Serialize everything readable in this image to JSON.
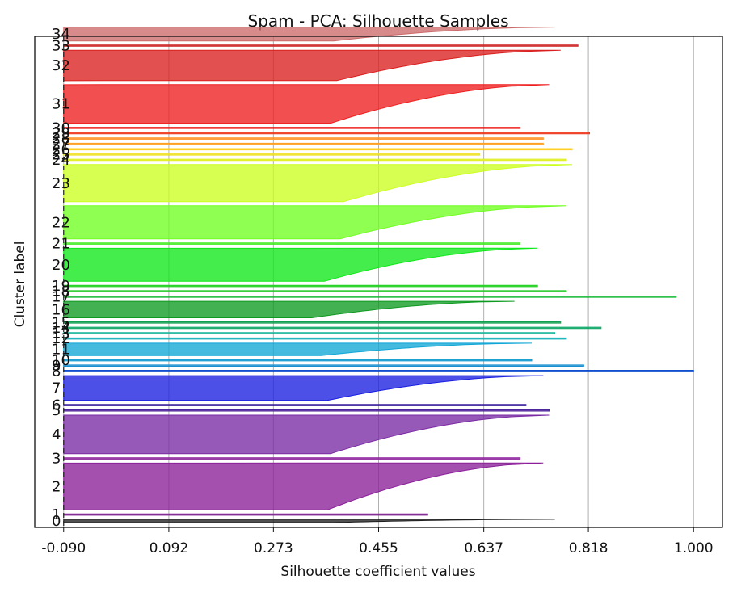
{
  "chart_data": {
    "type": "silhouette",
    "title": "Spam - PCA: Silhouette Samples",
    "xlabel": "Silhouette coefficient values",
    "ylabel": "Cluster label",
    "xlim": [
      -0.14,
      1.05
    ],
    "xticks": [
      "-0.090",
      "0.092",
      "0.273",
      "0.455",
      "0.637",
      "0.818",
      "1.000"
    ],
    "xtick_values": [
      -0.09,
      0.092,
      0.273,
      0.455,
      0.637,
      0.818,
      1.0
    ],
    "average_silhouette_line": -0.09,
    "grid": true,
    "clusters": [
      {
        "label": "0",
        "size": 12,
        "max": 0.76,
        "min": -0.09,
        "color": "#1f1f1f"
      },
      {
        "label": "1",
        "size": 4,
        "max": 0.54,
        "min": -0.09,
        "color": "#7a1f8c"
      },
      {
        "label": "2",
        "size": 170,
        "max": 0.74,
        "min": -0.09,
        "color": "#8b1f99"
      },
      {
        "label": "3",
        "size": 2,
        "max": 0.7,
        "min": -0.09,
        "color": "#8c1f9a"
      },
      {
        "label": "4",
        "size": 140,
        "max": 0.75,
        "min": -0.09,
        "color": "#7a2aa3"
      },
      {
        "label": "5",
        "size": 3,
        "max": 0.75,
        "min": -0.09,
        "color": "#4a1f9a"
      },
      {
        "label": "6",
        "size": 3,
        "max": 0.71,
        "min": -0.09,
        "color": "#3a1f9a"
      },
      {
        "label": "7",
        "size": 90,
        "max": 0.74,
        "min": -0.09,
        "color": "#1a1fe0"
      },
      {
        "label": "8",
        "size": 2,
        "max": 1.0,
        "min": -0.09,
        "color": "#0f4fd0"
      },
      {
        "label": "9",
        "size": 2,
        "max": 0.81,
        "min": -0.09,
        "color": "#1a8fd0"
      },
      {
        "label": "10",
        "size": 2,
        "max": 0.72,
        "min": -0.09,
        "color": "#109ad0"
      },
      {
        "label": "11",
        "size": 45,
        "max": 0.72,
        "min": -0.09,
        "color": "#10a6d6"
      },
      {
        "label": "12",
        "size": 2,
        "max": 0.78,
        "min": -0.09,
        "color": "#10b0b8"
      },
      {
        "label": "13",
        "size": 3,
        "max": 0.76,
        "min": -0.09,
        "color": "#10b496"
      },
      {
        "label": "14",
        "size": 2,
        "max": 0.84,
        "min": -0.09,
        "color": "#10a868"
      },
      {
        "label": "15",
        "size": 3,
        "max": 0.77,
        "min": -0.09,
        "color": "#10a050"
      },
      {
        "label": "16",
        "size": 60,
        "max": 0.69,
        "min": -0.09,
        "color": "#0e9a20"
      },
      {
        "label": "17",
        "size": 2,
        "max": 0.97,
        "min": -0.09,
        "color": "#10b830"
      },
      {
        "label": "18",
        "size": 2,
        "max": 0.78,
        "min": -0.09,
        "color": "#1ec820"
      },
      {
        "label": "19",
        "size": 2,
        "max": 0.73,
        "min": -0.09,
        "color": "#20d020"
      },
      {
        "label": "20",
        "size": 120,
        "max": 0.73,
        "min": -0.09,
        "color": "#10e81a"
      },
      {
        "label": "21",
        "size": 2,
        "max": 0.7,
        "min": -0.09,
        "color": "#40ec20"
      },
      {
        "label": "22",
        "size": 120,
        "max": 0.78,
        "min": -0.09,
        "color": "#70ff20"
      },
      {
        "label": "23",
        "size": 135,
        "max": 0.79,
        "min": -0.09,
        "color": "#ccff20"
      },
      {
        "label": "24",
        "size": 3,
        "max": 0.78,
        "min": -0.09,
        "color": "#e0f020"
      },
      {
        "label": "25",
        "size": 2,
        "max": 0.63,
        "min": -0.09,
        "color": "#f0e020"
      },
      {
        "label": "26",
        "size": 3,
        "max": 0.79,
        "min": -0.09,
        "color": "#ffd020"
      },
      {
        "label": "27",
        "size": 2,
        "max": 0.74,
        "min": -0.09,
        "color": "#ffa020"
      },
      {
        "label": "28",
        "size": 3,
        "max": 0.74,
        "min": -0.09,
        "color": "#ff9020"
      },
      {
        "label": "29",
        "size": 2,
        "max": 0.82,
        "min": -0.09,
        "color": "#ee3a1f"
      },
      {
        "label": "30",
        "size": 2,
        "max": 0.7,
        "min": -0.09,
        "color": "#ee201f"
      },
      {
        "label": "31",
        "size": 140,
        "max": 0.75,
        "min": -0.09,
        "color": "#ee1f1f"
      },
      {
        "label": "32",
        "size": 110,
        "max": 0.77,
        "min": -0.09,
        "color": "#da1f1f"
      },
      {
        "label": "33",
        "size": 4,
        "max": 0.8,
        "min": -0.09,
        "color": "#cc1f1f"
      },
      {
        "label": "34",
        "size": 50,
        "max": 0.76,
        "min": -0.09,
        "color": "#cc6a6a"
      }
    ]
  }
}
